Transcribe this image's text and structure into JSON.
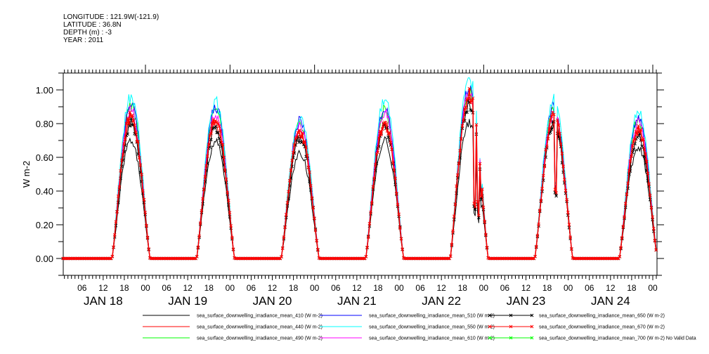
{
  "header": {
    "longitude": "LONGITUDE : 121.9W(-121.9)",
    "latitude": "LATITUDE : 36.8N",
    "depth": "DEPTH (m) : -3",
    "year": "YEAR : 2011"
  },
  "chart_data": {
    "type": "line",
    "title": "",
    "xlabel": "",
    "ylabel": "W m-2",
    "ylim": [
      -0.1,
      1.1
    ],
    "yticks": [
      "0.00",
      "0.20",
      "0.40",
      "0.60",
      "0.80",
      "1.00"
    ],
    "ytick_values": [
      0,
      0.2,
      0.4,
      0.6,
      0.8,
      1.0
    ],
    "x_hour_ticks": [
      "06",
      "12",
      "18",
      "00"
    ],
    "days": [
      "JAN 18",
      "JAN 19",
      "JAN 20",
      "JAN 21",
      "JAN 22",
      "JAN 23",
      "JAN 24"
    ],
    "xlim_hours_from_jan18_00": [
      0.6,
      169.2
    ],
    "daylight_hours_utc": [
      14.5,
      25.3
    ],
    "series": [
      {
        "name": "sea_surface_downwelling_irradiance_mean_410 (W m-2)",
        "color": "#000000",
        "marker": false,
        "peaks": [
          0.7,
          0.7,
          0.63,
          0.7,
          0.8,
          0.8,
          0.66
        ]
      },
      {
        "name": "sea_surface_downwelling_irradiance_mean_440 (W m-2)",
        "color": "#ff0000",
        "marker": false,
        "peaks": [
          0.82,
          0.8,
          0.74,
          0.8,
          0.95,
          0.82,
          0.76
        ]
      },
      {
        "name": "sea_surface_downwelling_irradiance_mean_490 (W m-2)",
        "color": "#00ff00",
        "marker": false,
        "peaks": [
          0.9,
          0.88,
          0.8,
          0.88,
          1.0,
          0.88,
          0.82
        ]
      },
      {
        "name": "sea_surface_downwelling_irradiance_mean_510 (W m-2)",
        "color": "#0000ff",
        "marker": false,
        "peaks": [
          0.92,
          0.9,
          0.82,
          0.9,
          1.02,
          0.9,
          0.84
        ]
      },
      {
        "name": "sea_surface_downwelling_irradiance_mean_550 (W m-2)",
        "color": "#00ffff",
        "marker": false,
        "peaks": [
          0.96,
          0.93,
          0.84,
          0.95,
          1.07,
          0.94,
          0.87
        ]
      },
      {
        "name": "sea_surface_downwelling_irradiance_mean_610 (W m-2)",
        "color": "#ff00ff",
        "marker": false,
        "peaks": [
          0.88,
          0.86,
          0.78,
          0.87,
          0.98,
          0.86,
          0.8
        ]
      },
      {
        "name": "sea_surface_downwelling_irradiance_mean_650 (W m-2)",
        "color": "#000000",
        "marker": true,
        "peaks": [
          0.8,
          0.78,
          0.72,
          0.78,
          0.92,
          0.8,
          0.72
        ]
      },
      {
        "name": "sea_surface_downwelling_irradiance_mean_670 (W m-2)",
        "color": "#ff0000",
        "marker": true,
        "peaks": [
          0.84,
          0.82,
          0.75,
          0.8,
          0.97,
          0.84,
          0.76
        ]
      },
      {
        "name": "sea_surface_downwelling_irradiance_mean_700 (W m-2) No Valid Data",
        "color": "#00ff00",
        "marker": true,
        "peaks": null
      }
    ],
    "dips": [
      {
        "day": "JAN 22",
        "hour": 21.3,
        "value": 0.32
      },
      {
        "day": "JAN 22",
        "hour": 21.7,
        "value": 0.3
      },
      {
        "day": "JAN 22",
        "hour": 22.3,
        "value": 0.33
      },
      {
        "day": "JAN 22",
        "hour": 22.7,
        "value": 0.25
      },
      {
        "day": "JAN 22",
        "hour": 23.3,
        "value": 0.36
      },
      {
        "day": "JAN 23",
        "hour": 20.3,
        "value": 0.4
      },
      {
        "day": "JAN 23",
        "hour": 20.7,
        "value": 0.38
      }
    ],
    "grid": false,
    "legend": "bottom"
  }
}
